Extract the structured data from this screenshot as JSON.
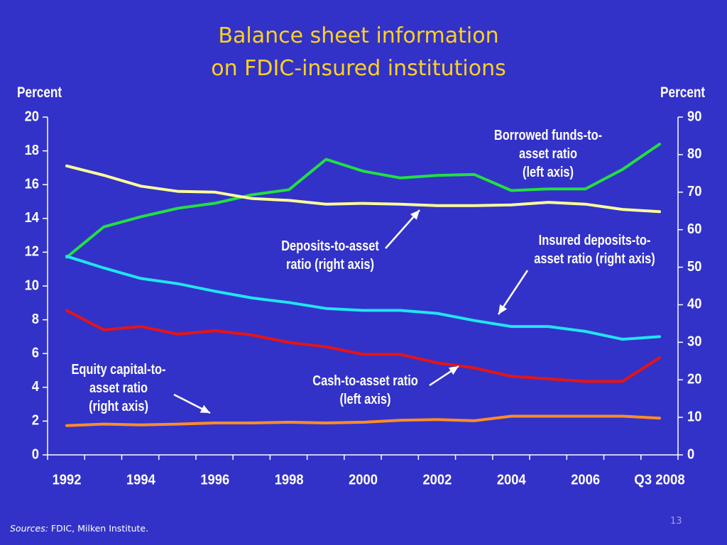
{
  "slide": {
    "title_line1": "Balance sheet information",
    "title_line2": "on FDIC-insured institutions",
    "left_unit": "Percent",
    "right_unit": "Percent",
    "sources_label": "Sources:",
    "sources_text": " FDIC, Milken Institute.",
    "page_number": "13"
  },
  "annotations": {
    "borrowed": [
      "Borrowed funds-to-",
      "asset ratio",
      "(left axis)"
    ],
    "deposits": [
      "Deposits-to-asset",
      "ratio (right axis)"
    ],
    "insured": [
      "Insured deposits-to-",
      "asset ratio (right axis)"
    ],
    "equity": [
      "Equity capital-to-",
      "asset ratio",
      "(right axis)"
    ],
    "cash": [
      "Cash-to-asset ratio",
      "(left axis)"
    ]
  },
  "chart_data": {
    "type": "line",
    "x": [
      "1992",
      "1993",
      "1994",
      "1995",
      "1996",
      "1997",
      "1998",
      "1999",
      "2000",
      "2001",
      "2002",
      "2003",
      "2004",
      "2005",
      "2006",
      "2007",
      "Q3 2008"
    ],
    "x_tick_labels": [
      "1992",
      "1994",
      "1996",
      "1998",
      "2000",
      "2002",
      "2004",
      "2006",
      "Q3 2008"
    ],
    "y_left": {
      "label": "Percent",
      "min": 0,
      "max": 20,
      "ticks": [
        0,
        2,
        4,
        6,
        8,
        10,
        12,
        14,
        16,
        18,
        20
      ]
    },
    "y_right": {
      "label": "Percent",
      "min": 0,
      "max": 90,
      "ticks": [
        0,
        10,
        20,
        30,
        40,
        50,
        60,
        70,
        80,
        90
      ]
    },
    "grid": false,
    "series": [
      {
        "name": "Borrowed funds-to-asset ratio",
        "axis": "left",
        "color": "#22e040",
        "values": [
          11.7,
          13.5,
          14.1,
          14.6,
          14.9,
          15.4,
          15.7,
          17.5,
          16.8,
          16.4,
          16.55,
          16.6,
          15.65,
          15.75,
          15.75,
          16.9,
          18.4
        ]
      },
      {
        "name": "Deposits-to-asset ratio",
        "axis": "right",
        "color": "#ffff99",
        "values": [
          77.0,
          74.5,
          71.6,
          70.2,
          70.0,
          68.3,
          67.8,
          66.8,
          67.0,
          66.8,
          66.4,
          66.4,
          66.6,
          67.3,
          66.8,
          65.4,
          64.8
        ]
      },
      {
        "name": "Insured deposits-to-asset ratio",
        "axis": "right",
        "color": "#22e4f4",
        "values": [
          52.9,
          49.8,
          47.0,
          45.6,
          43.6,
          41.8,
          40.6,
          39.0,
          38.5,
          38.5,
          37.7,
          35.8,
          34.2,
          34.2,
          32.9,
          30.8,
          31.5
        ]
      },
      {
        "name": "Cash-to-asset ratio",
        "axis": "left",
        "color": "#e61414",
        "values": [
          8.55,
          7.4,
          7.6,
          7.15,
          7.35,
          7.1,
          6.65,
          6.4,
          5.95,
          5.95,
          5.45,
          5.15,
          4.65,
          4.5,
          4.35,
          4.35,
          5.75
        ]
      },
      {
        "name": "Equity capital-to-asset ratio",
        "axis": "right",
        "color": "#ff8c28",
        "values": [
          7.8,
          8.2,
          8.0,
          8.2,
          8.5,
          8.5,
          8.7,
          8.5,
          8.7,
          9.2,
          9.4,
          9.1,
          10.3,
          10.3,
          10.3,
          10.3,
          9.8
        ]
      }
    ]
  }
}
